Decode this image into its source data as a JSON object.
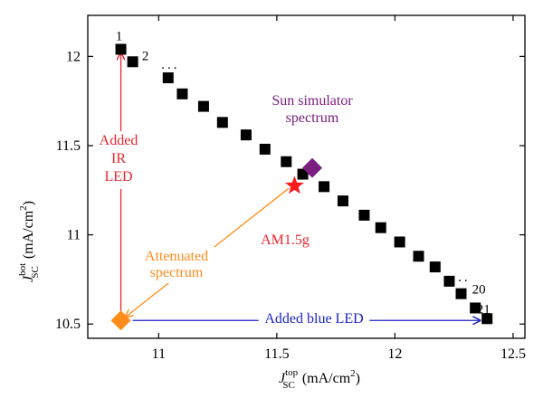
{
  "chart_data": {
    "type": "scatter",
    "xlim": [
      10.7,
      12.55
    ],
    "ylim": [
      10.42,
      12.23
    ],
    "x_ticks": [
      11,
      11.5,
      12,
      12.5
    ],
    "y_ticks": [
      10.5,
      11,
      11.5,
      12
    ],
    "x_tick_labels": [
      "11",
      "11.5",
      "12",
      "12.5"
    ],
    "y_tick_labels": [
      "10.5",
      "11",
      "11.5",
      "12"
    ],
    "xlabel": {
      "symbol": "J",
      "sub": "SC",
      "sup": "top",
      "unit": "(mA/cm",
      "unit_sup": "2",
      "unit_end": ")"
    },
    "ylabel": {
      "symbol": "J",
      "sub": "SC",
      "sup": "bot",
      "unit": "(mA/cm",
      "unit_sup": "2",
      "unit_end": ")"
    },
    "grid": false,
    "series": [
      {
        "marker": "square",
        "color": "#000000",
        "points": [
          [
            10.84,
            12.04
          ],
          [
            10.89,
            11.97
          ],
          [
            11.04,
            11.88
          ],
          [
            11.1,
            11.79
          ],
          [
            11.19,
            11.72
          ],
          [
            11.27,
            11.63
          ],
          [
            11.37,
            11.56
          ],
          [
            11.45,
            11.48
          ],
          [
            11.54,
            11.41
          ],
          [
            11.61,
            11.34
          ],
          [
            11.7,
            11.27
          ],
          [
            11.78,
            11.19
          ],
          [
            11.87,
            11.11
          ],
          [
            11.94,
            11.04
          ],
          [
            12.02,
            10.96
          ],
          [
            12.1,
            10.88
          ],
          [
            12.17,
            10.82
          ],
          [
            12.23,
            10.74
          ],
          [
            12.28,
            10.67
          ],
          [
            12.34,
            10.59
          ],
          [
            12.39,
            10.53
          ]
        ],
        "point_labels": [
          {
            "index": 0,
            "text": "1"
          },
          {
            "index": 1,
            "text": "2"
          },
          {
            "index": 19,
            "text": "20"
          },
          {
            "index": 20,
            "text": "21"
          }
        ]
      }
    ],
    "ellipses": [
      {
        "text": "...",
        "x": 11.05,
        "y": 11.93
      },
      {
        "text": "...",
        "x": 12.28,
        "y": 10.74
      }
    ],
    "special_points": [
      {
        "name": "Sun simulator spectrum",
        "marker": "diamond",
        "color": "#7a1e80",
        "x": 11.65,
        "y": 11.375
      },
      {
        "name": "AM1.5g",
        "marker": "star",
        "color": "#ff1a1a",
        "x": 11.575,
        "y": 11.275
      },
      {
        "name": "Attenuated spectrum",
        "marker": "diamond",
        "color": "#ff8c1a",
        "x": 10.84,
        "y": 10.52
      }
    ],
    "annotations": [
      {
        "id": "ir",
        "lines": [
          "Added",
          "IR",
          "LED"
        ],
        "color": "#e8272e"
      },
      {
        "id": "sun",
        "lines": [
          "Sun simulator",
          "spectrum"
        ],
        "color": "#7a1e80"
      },
      {
        "id": "am",
        "lines": [
          "AM1.5g"
        ],
        "color": "#e8272e"
      },
      {
        "id": "att",
        "lines": [
          "Attenuated",
          "spectrum"
        ],
        "color": "#ff8c1a"
      },
      {
        "id": "blue",
        "lines": [
          "Added blue LED"
        ],
        "color": "#1f22c8"
      }
    ],
    "arrows": [
      {
        "id": "ir-arrow",
        "color": "#e8272e",
        "from": [
          10.84,
          10.55
        ],
        "to": [
          10.84,
          12.02
        ]
      },
      {
        "id": "blue-arrow",
        "color": "#1f22c8",
        "from": [
          10.89,
          10.52
        ],
        "to": [
          12.36,
          10.52
        ]
      },
      {
        "id": "att-arrow",
        "color": "#ff8c1a",
        "from": [
          11.55,
          11.26
        ],
        "to": [
          10.86,
          10.54
        ]
      }
    ]
  }
}
